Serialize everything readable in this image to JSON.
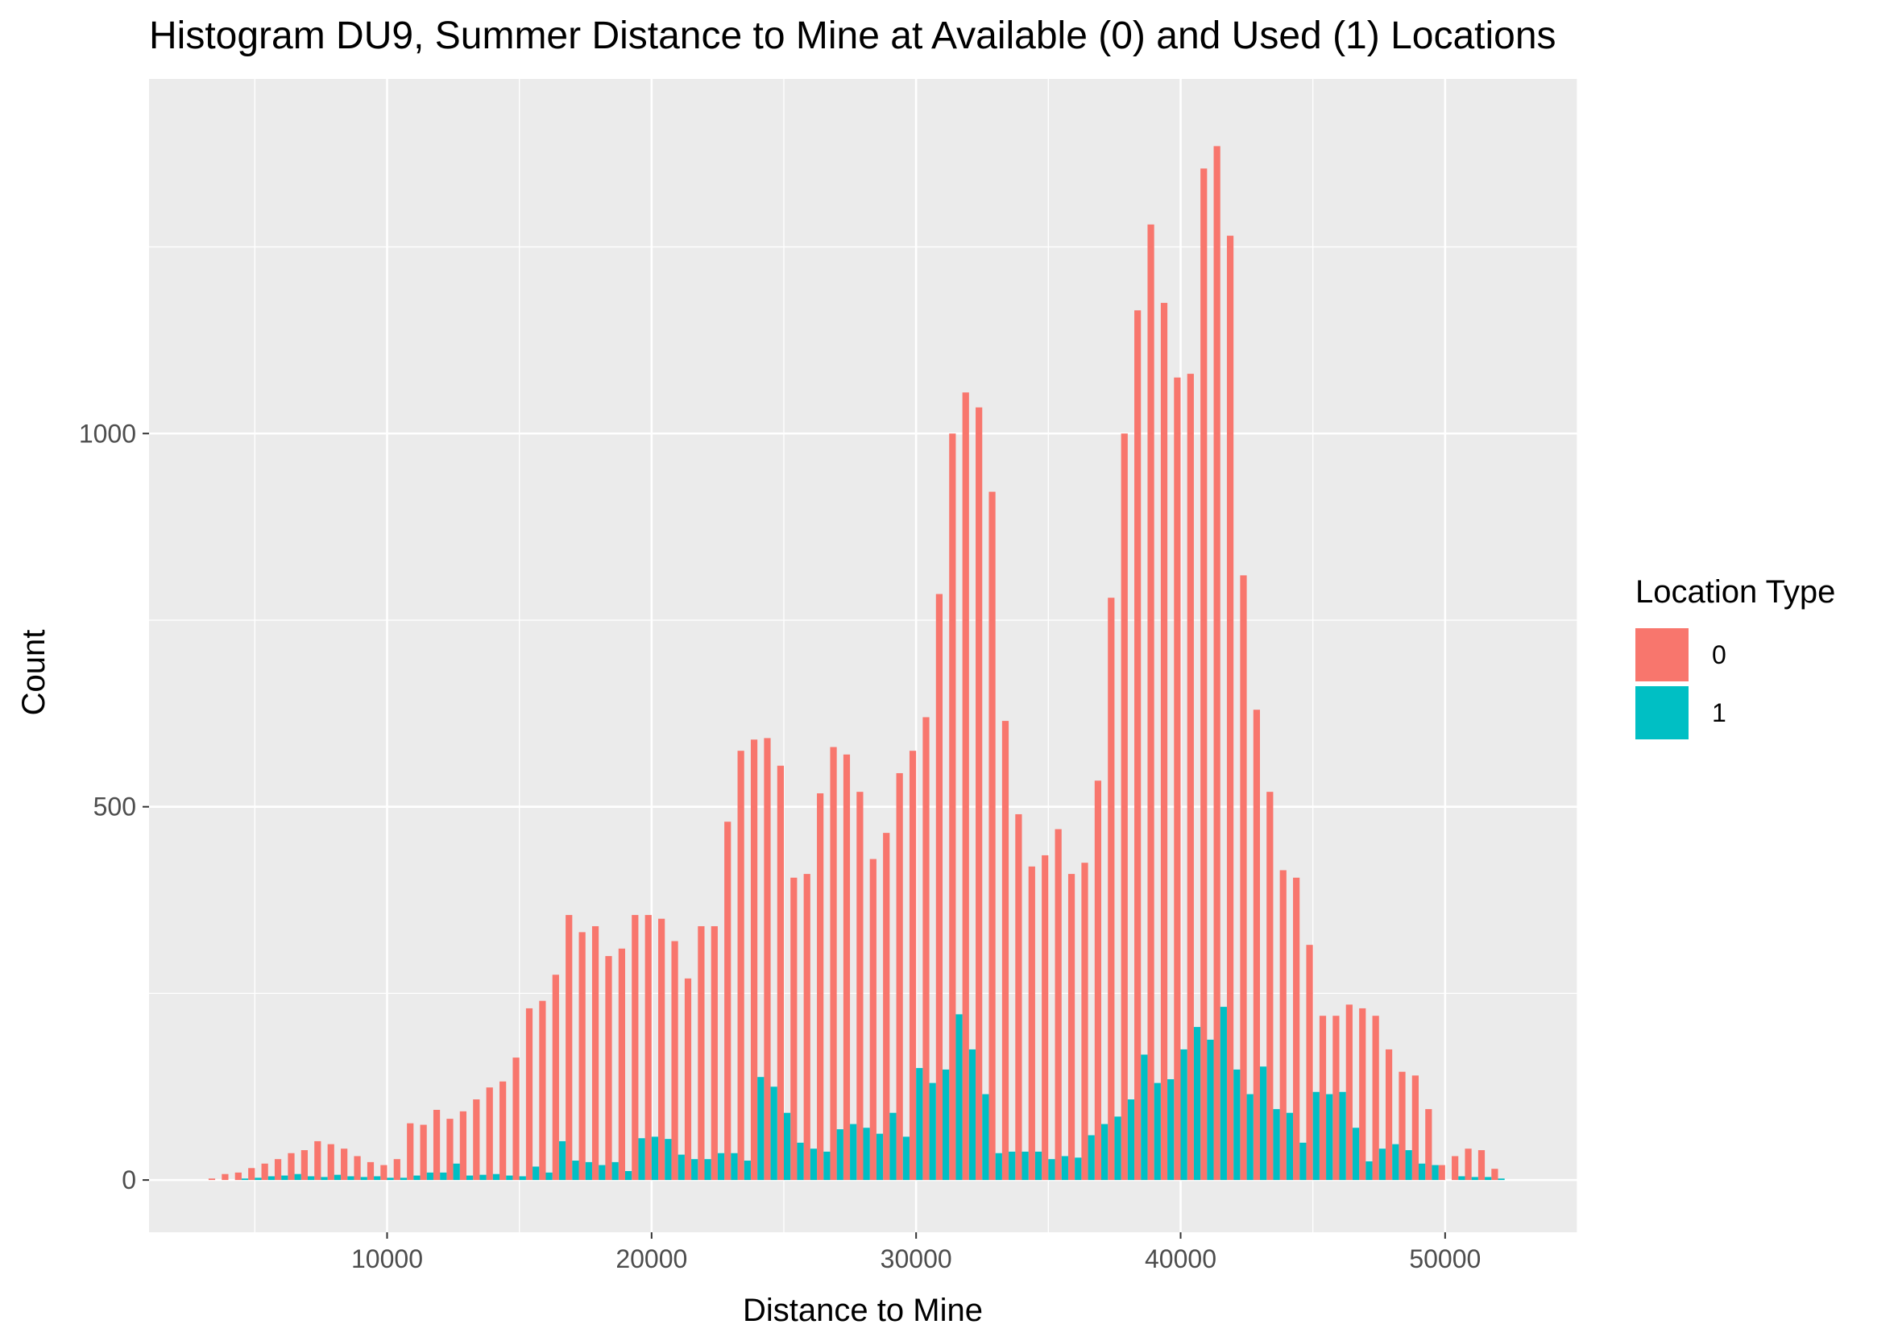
{
  "chart_data": {
    "type": "bar",
    "title": "Histogram DU9, Summer Distance to Mine at Available (0) and Used (1) Locations",
    "xlabel": "Distance to Mine",
    "ylabel": "Count",
    "xlim": [
      1000,
      55000
    ],
    "ylim": [
      -70,
      1475
    ],
    "x_ticks": [
      10000,
      20000,
      30000,
      40000,
      50000
    ],
    "x_tick_labels": [
      "10000",
      "20000",
      "30000",
      "40000",
      "50000"
    ],
    "y_ticks": [
      0,
      500,
      1000
    ],
    "y_tick_labels": [
      "0",
      "500",
      "1000"
    ],
    "bin_width": 500,
    "x": [
      3500,
      4000,
      4500,
      5000,
      5500,
      6000,
      6500,
      7000,
      7500,
      8000,
      8500,
      9000,
      9500,
      10000,
      10500,
      11000,
      11500,
      12000,
      12500,
      13000,
      13500,
      14000,
      14500,
      15000,
      15500,
      16000,
      16500,
      17000,
      17500,
      18000,
      18500,
      19000,
      19500,
      20000,
      20500,
      21000,
      21500,
      22000,
      22500,
      23000,
      23500,
      24000,
      24500,
      25000,
      25500,
      26000,
      26500,
      27000,
      27500,
      28000,
      28500,
      29000,
      29500,
      30000,
      30500,
      31000,
      31500,
      32000,
      32500,
      33000,
      33500,
      34000,
      34500,
      35000,
      35500,
      36000,
      36500,
      37000,
      37500,
      38000,
      38500,
      39000,
      39500,
      40000,
      40500,
      41000,
      41500,
      42000,
      42500,
      43000,
      43500,
      44000,
      44500,
      45000,
      45500,
      46000,
      46500,
      47000,
      47500,
      48000,
      48500,
      49000,
      49500,
      50000,
      50500,
      51000,
      51500,
      52000
    ],
    "legend": {
      "title": "Location Type",
      "position": "right"
    },
    "grid": true,
    "series": [
      {
        "name": "0",
        "color": "#F8766D",
        "values": [
          2,
          8,
          10,
          16,
          22,
          28,
          36,
          40,
          52,
          48,
          42,
          32,
          24,
          20,
          28,
          76,
          74,
          94,
          82,
          92,
          108,
          124,
          132,
          164,
          230,
          240,
          275,
          355,
          332,
          340,
          300,
          310,
          355,
          355,
          350,
          320,
          270,
          340,
          340,
          480,
          575,
          590,
          592,
          555,
          405,
          410,
          518,
          580,
          570,
          520,
          430,
          465,
          545,
          575,
          620,
          785,
          1000,
          1055,
          1035,
          922,
          615,
          490,
          420,
          435,
          470,
          410,
          425,
          535,
          780,
          1000,
          1165,
          1280,
          1175,
          1075,
          1080,
          1355,
          1385,
          1265,
          810,
          630,
          520,
          415,
          405,
          315,
          220,
          220,
          235,
          230,
          220,
          175,
          145,
          140,
          95,
          20,
          32,
          42,
          40,
          15
        ]
      },
      {
        "name": "1",
        "color": "#00BFC4",
        "values": [
          0,
          0,
          2,
          3,
          5,
          6,
          8,
          5,
          4,
          7,
          5,
          4,
          5,
          3,
          3,
          6,
          10,
          10,
          22,
          6,
          7,
          8,
          6,
          5,
          18,
          10,
          52,
          26,
          24,
          20,
          24,
          12,
          56,
          58,
          55,
          34,
          28,
          28,
          36,
          36,
          26,
          138,
          125,
          90,
          50,
          42,
          38,
          68,
          75,
          70,
          62,
          90,
          58,
          150,
          130,
          148,
          222,
          175,
          115,
          36,
          38,
          38,
          38,
          28,
          32,
          30,
          60,
          75,
          85,
          108,
          168,
          130,
          135,
          175,
          205,
          188,
          232,
          148,
          115,
          152,
          95,
          90,
          50,
          118,
          115,
          118,
          70,
          25,
          42,
          48,
          40,
          22,
          20,
          0,
          5,
          4,
          4,
          2
        ]
      }
    ]
  }
}
